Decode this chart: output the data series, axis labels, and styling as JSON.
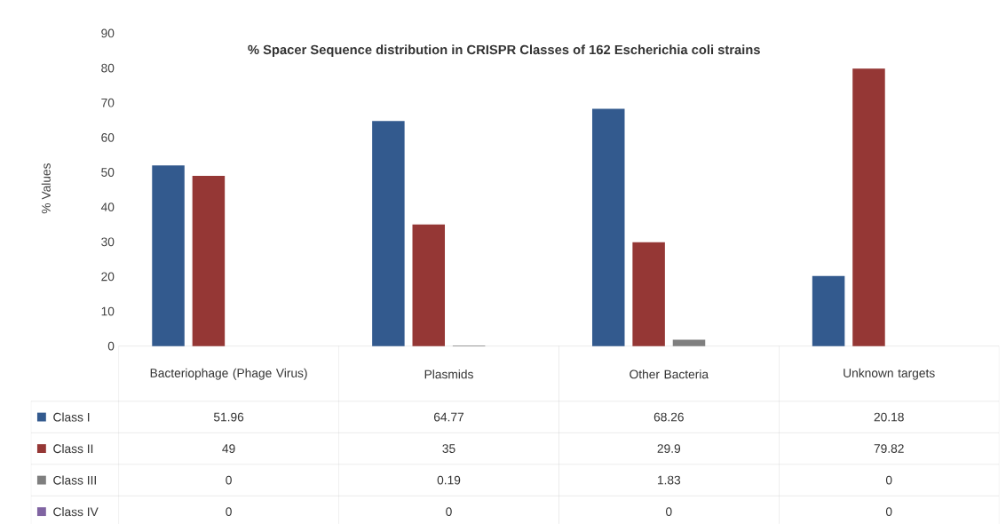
{
  "chart_data": {
    "type": "bar",
    "title": "% Spacer Sequence distribution in CRISPR Classes of 162 Escherichia coli strains",
    "ylabel": "% Values",
    "categories": [
      "Bacteriophage (Phage Virus)",
      "Plasmids",
      "Other Bacteria",
      "Unknown targets"
    ],
    "series": [
      {
        "name": "Class I",
        "color": "#335a8e",
        "values": [
          51.96,
          64.77,
          68.26,
          20.18
        ]
      },
      {
        "name": "Class II",
        "color": "#953735",
        "values": [
          49,
          35,
          29.9,
          79.82
        ]
      },
      {
        "name": "Class III",
        "color": "#7f7f7f",
        "values": [
          0,
          0.19,
          1.83,
          0
        ]
      },
      {
        "name": "Class IV",
        "color": "#8064a2",
        "values": [
          0,
          0,
          0,
          0
        ]
      }
    ],
    "ylim": [
      0,
      90
    ],
    "yticks": [
      0,
      10,
      20,
      30,
      40,
      50,
      60,
      70,
      80,
      90
    ],
    "data_labels": true,
    "legend": "bottom left"
  }
}
